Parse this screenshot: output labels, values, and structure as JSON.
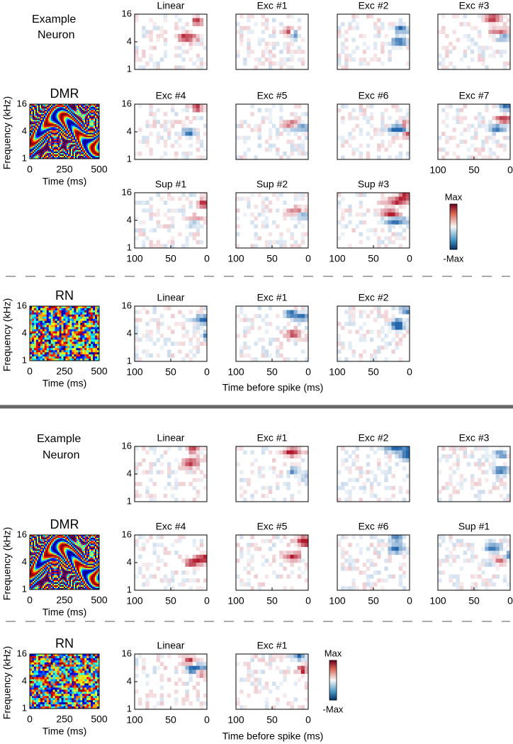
{
  "sections": [
    {
      "example_label": [
        "Example",
        "Neuron"
      ],
      "dmr": {
        "title": "DMR",
        "ylabel": "Frequency (kHz)",
        "yticks": [
          16,
          4,
          1
        ],
        "ylim": [
          1,
          16
        ],
        "xticks": [
          0,
          250,
          500
        ],
        "xlim": [
          0,
          500
        ],
        "xlabel": "Time (ms)"
      },
      "rf_axis": {
        "ylim": [
          1,
          16
        ],
        "xlim": [
          100,
          0
        ]
      },
      "rf_panels": [
        {
          "title": "Linear",
          "yticks": [
            16,
            4,
            1
          ]
        },
        {
          "title": "Exc #1"
        },
        {
          "title": "Exc #2"
        },
        {
          "title": "Exc #3"
        },
        {
          "title": "Exc #4",
          "yticks": [
            16,
            4,
            1
          ]
        },
        {
          "title": "Exc #5"
        },
        {
          "title": "Exc #6"
        },
        {
          "title": "Exc #7",
          "xticks": [
            100,
            50,
            0
          ]
        },
        {
          "title": "Sup #1",
          "yticks": [
            16,
            4,
            1
          ],
          "xticks": [
            100,
            50,
            0
          ]
        },
        {
          "title": "Sup #2",
          "xticks": [
            100,
            50,
            0
          ]
        },
        {
          "title": "Sup #3",
          "xticks": [
            100,
            50,
            0
          ]
        }
      ],
      "colorbar": {
        "max": "Max",
        "min": "-Max"
      },
      "rn": {
        "title": "RN",
        "ylabel": "Frequency (kHz)",
        "yticks": [
          16,
          4,
          1
        ],
        "ylim": [
          1,
          16
        ],
        "xticks": [
          0,
          250,
          500
        ],
        "xlim": [
          0,
          500
        ],
        "xlabel": "Time (ms)"
      },
      "rn_panels": [
        {
          "title": "Linear",
          "yticks": [
            16,
            4,
            1
          ],
          "xticks": [
            100,
            50,
            0
          ]
        },
        {
          "title": "Exc #1",
          "xticks": [
            100,
            50,
            0
          ]
        },
        {
          "title": "Exc #2",
          "xticks": [
            100,
            50,
            0
          ]
        }
      ],
      "xlabel": "Time before spike (ms)"
    },
    {
      "example_label": [
        "Example",
        "Neuron"
      ],
      "dmr": {
        "title": "DMR",
        "ylabel": "Frequency (kHz)",
        "yticks": [
          16,
          4,
          1
        ],
        "ylim": [
          1,
          16
        ],
        "xticks": [
          0,
          250,
          500
        ],
        "xlim": [
          0,
          500
        ],
        "xlabel": "Time (ms)"
      },
      "rf_axis": {
        "ylim": [
          1,
          16
        ],
        "xlim": [
          100,
          0
        ]
      },
      "rf_panels": [
        {
          "title": "Linear",
          "yticks": [
            16,
            4,
            1
          ]
        },
        {
          "title": "Exc #1"
        },
        {
          "title": "Exc #2"
        },
        {
          "title": "Exc #3"
        },
        {
          "title": "Exc #4",
          "yticks": [
            16,
            4,
            1
          ],
          "xticks": [
            100,
            50,
            0
          ]
        },
        {
          "title": "Exc #5",
          "xticks": [
            100,
            50,
            0
          ]
        },
        {
          "title": "Exc #6",
          "xticks": [
            100,
            50,
            0
          ]
        },
        {
          "title": "Sup #1",
          "xticks": [
            100,
            50,
            0
          ]
        }
      ],
      "colorbar": {
        "max": "Max",
        "min": "-Max"
      },
      "rn": {
        "title": "RN",
        "ylabel": "Frequency (kHz)",
        "yticks": [
          16,
          4,
          1
        ],
        "ylim": [
          1,
          16
        ],
        "xticks": [
          0,
          250,
          500
        ],
        "xlim": [
          0,
          500
        ],
        "xlabel": "Time (ms)"
      },
      "rn_panels": [
        {
          "title": "Linear",
          "yticks": [
            16,
            4,
            1
          ],
          "xticks": [
            100,
            50,
            0
          ]
        },
        {
          "title": "Exc #1",
          "xticks": [
            100,
            50,
            0
          ]
        }
      ],
      "xlabel": "Time before spike (ms)"
    }
  ]
}
